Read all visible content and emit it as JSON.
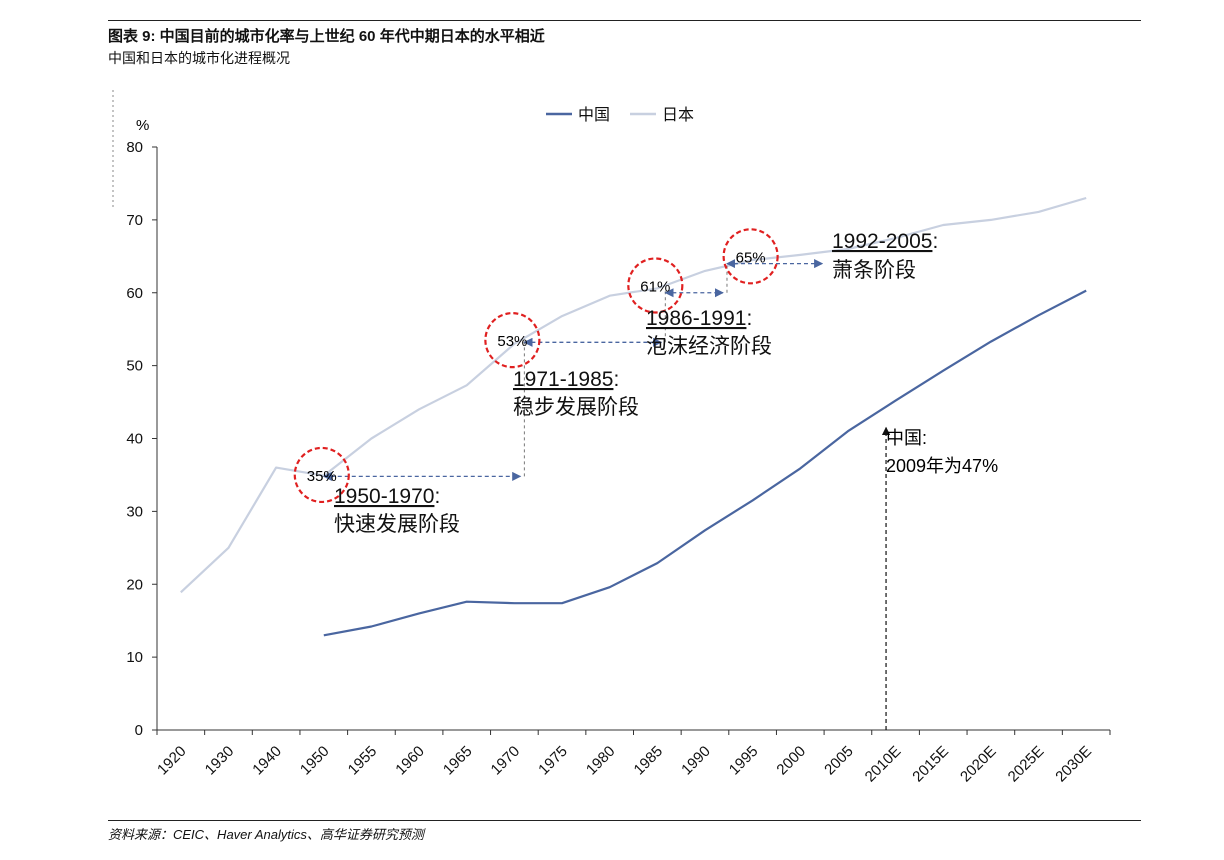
{
  "header": {
    "title": "图表 9: 中国目前的城市化率与上世纪 60 年代中期日本的水平相近",
    "subtitle": "中国和日本的城市化进程概况"
  },
  "footer": {
    "source": "资料来源：CEIC、Haver Analytics、高华证券研究预测"
  },
  "chart_data": {
    "type": "line",
    "title": "",
    "ylabel": "%",
    "ylim": [
      0,
      80
    ],
    "yticks": [
      0,
      10,
      20,
      30,
      40,
      50,
      60,
      70,
      80
    ],
    "categories": [
      "1920",
      "1930",
      "1940",
      "1950",
      "1955",
      "1960",
      "1965",
      "1970",
      "1975",
      "1980",
      "1985",
      "1990",
      "1995",
      "2000",
      "2005",
      "2010E",
      "2015E",
      "2020E",
      "2025E",
      "2030E"
    ],
    "legend_position": "top-center",
    "series": [
      {
        "name": "中国",
        "color": "#4a66a0",
        "values": [
          null,
          null,
          null,
          13.0,
          14.2,
          16.0,
          17.6,
          17.4,
          17.4,
          19.6,
          22.9,
          27.4,
          31.5,
          35.9,
          41.0,
          45.2,
          49.3,
          53.3,
          56.9,
          60.3
        ]
      },
      {
        "name": "日本",
        "color": "#c8d0e0",
        "values": [
          18.9,
          25.0,
          36.0,
          34.9,
          40.0,
          44.0,
          47.3,
          53.0,
          56.8,
          59.6,
          60.6,
          63.0,
          64.5,
          65.2,
          66.0,
          67.5,
          69.3,
          70.0,
          71.1,
          73.0
        ]
      }
    ],
    "annotations": {
      "circles": [
        {
          "label": "35%",
          "x": "1950",
          "y": 35
        },
        {
          "label": "53%",
          "x": "1970",
          "y": 53.5
        },
        {
          "label": "61%",
          "x": "1985",
          "y": 61
        },
        {
          "label": "65%",
          "x": "1995",
          "y": 65
        }
      ],
      "periods": [
        {
          "years": "1950-1970",
          "suffix": ":",
          "stage": "快速发展阶段"
        },
        {
          "years": "1971-1985",
          "suffix": ":",
          "stage": "稳步发展阶段"
        },
        {
          "years": "1986-1991",
          "suffix": ":",
          "stage": "泡沫经济阶段"
        },
        {
          "years": "1992-2005",
          "suffix": ":",
          "stage": "萧条阶段"
        }
      ],
      "china_note": {
        "line1": "中国:",
        "line2": "2009年为47%"
      }
    }
  }
}
